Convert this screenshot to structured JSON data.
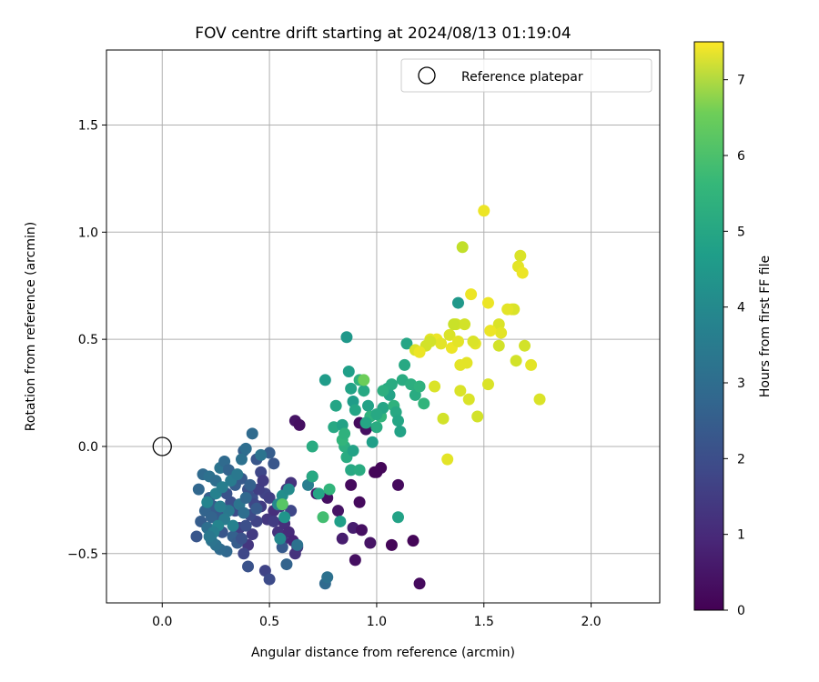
{
  "chart_data": {
    "type": "scatter",
    "title": "FOV centre drift starting at 2024/08/13 01:19:04",
    "xlabel": "Angular distance from reference (arcmin)",
    "ylabel": "Rotation from reference (arcmin)",
    "xlim": [
      -0.26,
      2.32
    ],
    "ylim": [
      -0.73,
      1.85
    ],
    "x_ticks": [
      0.0,
      0.5,
      1.0,
      1.5,
      2.0
    ],
    "x_tick_labels": [
      "0.0",
      "0.5",
      "1.0",
      "1.5",
      "2.0"
    ],
    "y_ticks": [
      -0.5,
      0.0,
      0.5,
      1.0,
      1.5
    ],
    "y_tick_labels": [
      "−0.5",
      "0.0",
      "0.5",
      "1.0",
      "1.5"
    ],
    "grid": true,
    "legend": {
      "placement": "top-right",
      "entries": [
        {
          "label": "Reference platepar",
          "marker": "open-circle"
        }
      ]
    },
    "reference_point": {
      "x": 0.0,
      "y": 0.0
    },
    "colorbar": {
      "label": "Hours from first FF file",
      "colormap": "viridis",
      "range": [
        0,
        7.5
      ],
      "ticks": [
        0,
        1,
        2,
        3,
        4,
        5,
        6,
        7
      ],
      "tick_labels": [
        "0",
        "1",
        "2",
        "3",
        "4",
        "5",
        "6",
        "7"
      ]
    },
    "points": [
      [
        0.62,
        0.12,
        0.4
      ],
      [
        0.64,
        0.1,
        0.3
      ],
      [
        0.7,
        -0.14,
        0.4
      ],
      [
        0.72,
        -0.22,
        0.5
      ],
      [
        0.77,
        -0.24,
        0.3
      ],
      [
        0.82,
        -0.3,
        0.4
      ],
      [
        0.84,
        -0.43,
        0.6
      ],
      [
        0.88,
        -0.18,
        0.2
      ],
      [
        0.89,
        -0.38,
        0.6
      ],
      [
        0.9,
        -0.53,
        0.3
      ],
      [
        0.92,
        -0.26,
        0.2
      ],
      [
        0.93,
        -0.39,
        0.3
      ],
      [
        0.97,
        -0.45,
        0.4
      ],
      [
        1.0,
        -0.12,
        0.1
      ],
      [
        1.02,
        -0.1,
        0.1
      ],
      [
        1.07,
        -0.46,
        0.1
      ],
      [
        1.1,
        -0.18,
        0.2
      ],
      [
        1.17,
        -0.44,
        0.1
      ],
      [
        1.2,
        -0.64,
        0.2
      ],
      [
        0.92,
        0.11,
        0.2
      ],
      [
        0.95,
        0.08,
        0.3
      ],
      [
        0.99,
        -0.12,
        0.1
      ],
      [
        0.6,
        -0.17,
        1.1
      ],
      [
        0.58,
        -0.2,
        1.2
      ],
      [
        0.56,
        -0.27,
        0.9
      ],
      [
        0.52,
        -0.3,
        1.0
      ],
      [
        0.49,
        -0.34,
        1.2
      ],
      [
        0.46,
        -0.28,
        1.3
      ],
      [
        0.44,
        -0.35,
        1.5
      ],
      [
        0.42,
        -0.41,
        1.3
      ],
      [
        0.4,
        -0.46,
        1.2
      ],
      [
        0.38,
        -0.5,
        1.6
      ],
      [
        0.36,
        -0.38,
        1.4
      ],
      [
        0.34,
        -0.3,
        1.7
      ],
      [
        0.32,
        -0.26,
        1.8
      ],
      [
        0.3,
        -0.22,
        1.9
      ],
      [
        0.28,
        -0.4,
        2.0
      ],
      [
        0.26,
        -0.32,
        2.1
      ],
      [
        0.24,
        -0.28,
        2.2
      ],
      [
        0.22,
        -0.24,
        2.3
      ],
      [
        0.2,
        -0.3,
        2.4
      ],
      [
        0.18,
        -0.35,
        2.2
      ],
      [
        0.16,
        -0.42,
        2.0
      ],
      [
        0.17,
        -0.2,
        2.5
      ],
      [
        0.19,
        -0.13,
        2.6
      ],
      [
        0.22,
        -0.14,
        2.8
      ],
      [
        0.25,
        -0.16,
        2.7
      ],
      [
        0.27,
        -0.1,
        2.9
      ],
      [
        0.29,
        -0.07,
        2.6
      ],
      [
        0.31,
        -0.11,
        2.4
      ],
      [
        0.34,
        -0.18,
        2.2
      ],
      [
        0.37,
        -0.15,
        2.1
      ],
      [
        0.4,
        -0.2,
        1.9
      ],
      [
        0.42,
        -0.24,
        1.8
      ],
      [
        0.44,
        -0.06,
        2.0
      ],
      [
        0.46,
        -0.12,
        1.6
      ],
      [
        0.48,
        -0.22,
        1.5
      ],
      [
        0.5,
        -0.24,
        1.4
      ],
      [
        0.52,
        -0.35,
        1.3
      ],
      [
        0.54,
        -0.4,
        1.1
      ],
      [
        0.56,
        -0.44,
        1.0
      ],
      [
        0.48,
        -0.58,
        1.5
      ],
      [
        0.5,
        -0.62,
        1.7
      ],
      [
        0.4,
        -0.56,
        1.9
      ],
      [
        0.42,
        0.06,
        2.6
      ],
      [
        0.38,
        -0.02,
        2.3
      ],
      [
        0.5,
        -0.03,
        2.2
      ],
      [
        0.52,
        -0.08,
        2.0
      ],
      [
        0.55,
        -0.28,
        1.2
      ],
      [
        0.57,
        -0.36,
        1.0
      ],
      [
        0.59,
        -0.4,
        0.9
      ],
      [
        0.61,
        -0.44,
        0.8
      ],
      [
        0.63,
        -0.47,
        1.0
      ],
      [
        0.62,
        -0.5,
        1.1
      ],
      [
        0.58,
        -0.55,
        2.4
      ],
      [
        0.56,
        -0.47,
        2.1
      ],
      [
        0.3,
        -0.49,
        2.5
      ],
      [
        0.27,
        -0.48,
        2.6
      ],
      [
        0.25,
        -0.46,
        2.8
      ],
      [
        0.23,
        -0.44,
        2.9
      ],
      [
        0.21,
        -0.38,
        2.7
      ],
      [
        0.23,
        -0.33,
        2.4
      ],
      [
        0.33,
        -0.42,
        2.3
      ],
      [
        0.35,
        -0.45,
        2.2
      ],
      [
        0.37,
        -0.43,
        1.9
      ],
      [
        0.39,
        -0.37,
        1.8
      ],
      [
        0.41,
        -0.32,
        1.7
      ],
      [
        0.43,
        -0.27,
        1.6
      ],
      [
        0.45,
        -0.2,
        1.4
      ],
      [
        0.47,
        -0.16,
        1.3
      ],
      [
        0.31,
        -0.3,
        3.0
      ],
      [
        0.29,
        -0.34,
        3.1
      ],
      [
        0.27,
        -0.28,
        3.2
      ],
      [
        0.25,
        -0.22,
        3.3
      ],
      [
        0.21,
        -0.26,
        3.4
      ],
      [
        0.54,
        -0.27,
        3.5
      ],
      [
        0.56,
        -0.23,
        3.7
      ],
      [
        0.59,
        -0.2,
        3.6
      ],
      [
        0.6,
        -0.3,
        1.6
      ],
      [
        0.33,
        -0.37,
        3.3
      ],
      [
        0.36,
        -0.27,
        2.9
      ],
      [
        0.38,
        -0.31,
        2.7
      ],
      [
        0.39,
        -0.24,
        2.5
      ],
      [
        0.41,
        -0.18,
        2.3
      ],
      [
        0.44,
        -0.29,
        2.1
      ],
      [
        0.26,
        -0.37,
        3.4
      ],
      [
        0.24,
        -0.4,
        3.2
      ],
      [
        0.22,
        -0.42,
        3.0
      ],
      [
        0.28,
        -0.19,
        3.2
      ],
      [
        0.32,
        -0.16,
        3.1
      ],
      [
        0.35,
        -0.13,
        3.0
      ],
      [
        0.37,
        -0.06,
        2.8
      ],
      [
        0.39,
        -0.01,
        2.7
      ],
      [
        0.46,
        -0.04,
        2.9
      ],
      [
        0.63,
        -0.46,
        2.8
      ],
      [
        0.68,
        -0.18,
        3.2
      ],
      [
        0.55,
        -0.43,
        3.5
      ],
      [
        0.57,
        -0.33,
        3.9
      ],
      [
        0.76,
        0.31,
        4.1
      ],
      [
        0.76,
        -0.64,
        2.6
      ],
      [
        0.77,
        -0.61,
        2.8
      ],
      [
        0.7,
        -0.14,
        4.5
      ],
      [
        0.7,
        0.0,
        4.6
      ],
      [
        0.73,
        -0.22,
        4.4
      ],
      [
        0.8,
        0.09,
        4.5
      ],
      [
        0.81,
        0.19,
        4.4
      ],
      [
        0.84,
        0.1,
        4.3
      ],
      [
        0.86,
        0.51,
        4.0
      ],
      [
        0.87,
        0.35,
        4.2
      ],
      [
        0.88,
        0.27,
        4.3
      ],
      [
        0.89,
        0.21,
        4.1
      ],
      [
        0.9,
        0.17,
        4.4
      ],
      [
        0.85,
        0.0,
        4.7
      ],
      [
        0.84,
        0.03,
        4.9
      ],
      [
        0.86,
        -0.05,
        4.6
      ],
      [
        0.88,
        -0.11,
        4.5
      ],
      [
        0.89,
        -0.02,
        4.3
      ],
      [
        0.92,
        0.31,
        4.8
      ],
      [
        0.94,
        0.26,
        4.5
      ],
      [
        0.96,
        0.19,
        4.3
      ],
      [
        0.97,
        0.14,
        4.8
      ],
      [
        0.98,
        0.02,
        4.2
      ],
      [
        1.0,
        0.09,
        4.6
      ],
      [
        1.02,
        0.14,
        4.9
      ],
      [
        1.03,
        0.18,
        4.4
      ],
      [
        1.05,
        0.27,
        4.5
      ],
      [
        1.06,
        0.24,
        4.3
      ],
      [
        1.07,
        0.29,
        4.6
      ],
      [
        1.08,
        0.19,
        4.8
      ],
      [
        1.09,
        0.16,
        4.5
      ],
      [
        1.1,
        0.12,
        4.4
      ],
      [
        1.11,
        0.07,
        4.3
      ],
      [
        1.12,
        0.31,
        4.6
      ],
      [
        1.13,
        0.38,
        4.5
      ],
      [
        1.14,
        0.48,
        4.4
      ],
      [
        1.16,
        0.29,
        4.7
      ],
      [
        1.18,
        0.24,
        4.6
      ],
      [
        1.2,
        0.28,
        4.8
      ],
      [
        1.22,
        0.2,
        4.9
      ],
      [
        1.1,
        -0.33,
        4.3
      ],
      [
        0.83,
        -0.35,
        4.2
      ],
      [
        0.85,
        0.06,
        4.8
      ],
      [
        0.92,
        -0.11,
        4.6
      ],
      [
        0.95,
        0.11,
        4.4
      ],
      [
        1.03,
        0.26,
        4.7
      ],
      [
        1.0,
        0.15,
        4.5
      ],
      [
        0.94,
        0.31,
        5.8
      ],
      [
        0.75,
        -0.33,
        5.2
      ],
      [
        0.78,
        -0.2,
        4.9
      ],
      [
        0.56,
        -0.27,
        5.5
      ],
      [
        1.38,
        0.67,
        4.0
      ],
      [
        1.18,
        0.45,
        7.1
      ],
      [
        1.23,
        0.47,
        7.0
      ],
      [
        1.25,
        0.5,
        7.2
      ],
      [
        1.27,
        0.28,
        7.1
      ],
      [
        1.28,
        0.5,
        7.3
      ],
      [
        1.3,
        0.48,
        7.2
      ],
      [
        1.31,
        0.13,
        7.0
      ],
      [
        1.33,
        -0.06,
        7.2
      ],
      [
        1.34,
        0.52,
        7.1
      ],
      [
        1.35,
        0.46,
        7.3
      ],
      [
        1.37,
        0.57,
        7.0
      ],
      [
        1.38,
        0.49,
        7.2
      ],
      [
        1.39,
        0.26,
        7.1
      ],
      [
        1.4,
        0.93,
        6.8
      ],
      [
        1.41,
        0.57,
        7.0
      ],
      [
        1.42,
        0.39,
        7.2
      ],
      [
        1.43,
        0.22,
        7.1
      ],
      [
        1.44,
        0.71,
        7.3
      ],
      [
        1.46,
        0.48,
        7.2
      ],
      [
        1.47,
        0.14,
        7.0
      ],
      [
        1.5,
        1.1,
        7.3
      ],
      [
        1.52,
        0.29,
        7.1
      ],
      [
        1.52,
        0.67,
        7.3
      ],
      [
        1.53,
        0.54,
        7.2
      ],
      [
        1.57,
        0.47,
        7.0
      ],
      [
        1.57,
        0.57,
        7.1
      ],
      [
        1.58,
        0.53,
        7.2
      ],
      [
        1.63,
        0.64,
        7.3
      ],
      [
        1.64,
        0.64,
        7.1
      ],
      [
        1.65,
        0.4,
        7.0
      ],
      [
        1.66,
        0.84,
        7.2
      ],
      [
        1.67,
        0.89,
        7.1
      ],
      [
        1.68,
        0.81,
        7.3
      ],
      [
        1.69,
        0.47,
        7.0
      ],
      [
        1.72,
        0.38,
        7.2
      ],
      [
        1.76,
        0.22,
        7.1
      ],
      [
        1.39,
        0.38,
        7.2
      ],
      [
        1.2,
        0.44,
        7.3
      ],
      [
        1.36,
        0.57,
        6.9
      ],
      [
        1.25,
        0.49,
        7.0
      ],
      [
        1.45,
        0.49,
        7.1
      ],
      [
        1.53,
        0.54,
        7.3
      ],
      [
        1.61,
        0.64,
        7.2
      ]
    ]
  }
}
